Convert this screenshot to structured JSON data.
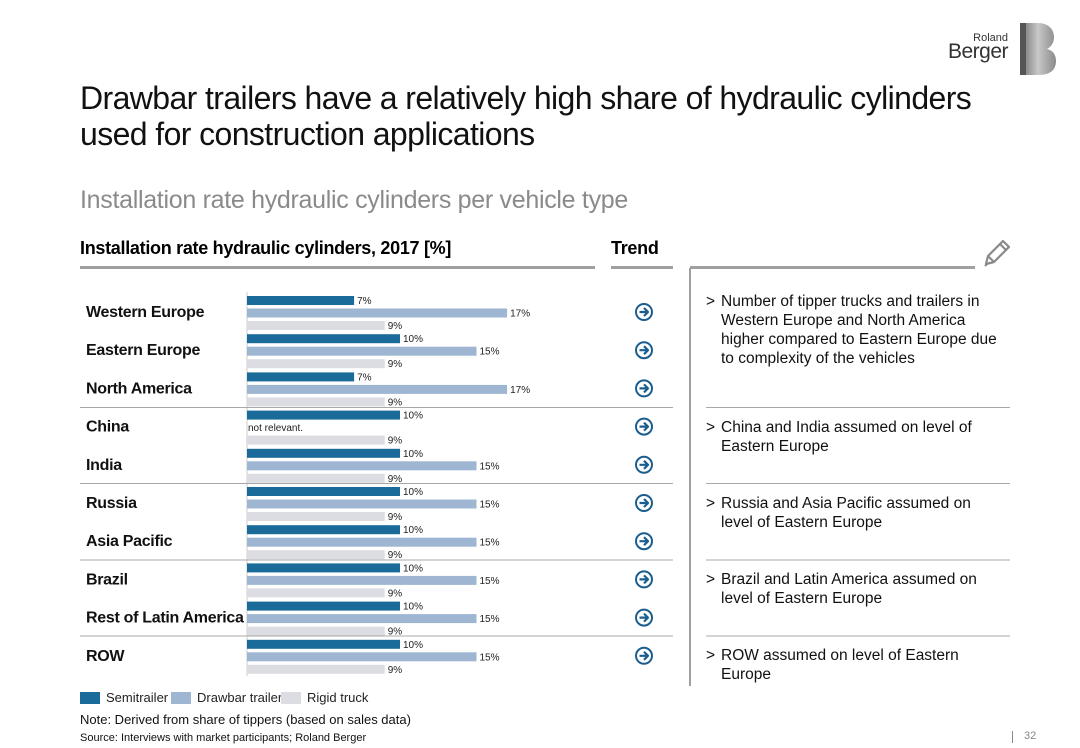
{
  "logo": {
    "line1": "Roland",
    "line2": "Berger"
  },
  "title": "Drawbar trailers have a relatively high share of hydraulic cylinders used for construction applications",
  "subtitle": "Installation rate hydraulic cylinders per vehicle type",
  "chart_heading": "Installation rate hydraulic cylinders, 2017 [%]",
  "trend_heading": "Trend",
  "colors": {
    "semitrailer": "#1a6a9a",
    "drawbar": "#9fb6d2",
    "rigid": "#dcdde2",
    "trend_icon": "#1a5d8f",
    "divider": "#a8a8a8"
  },
  "icons": {
    "trend": "arrow-right-circle-icon",
    "edit": "pencil-icon"
  },
  "chart_data": {
    "type": "bar",
    "orientation": "horizontal",
    "categories": [
      "Western Europe",
      "Eastern Europe",
      "North America",
      "China",
      "India",
      "Russia",
      "Asia Pacific",
      "Brazil",
      "Rest of Latin America",
      "ROW"
    ],
    "series": [
      {
        "name": "Semitrailer",
        "values": [
          7,
          10,
          7,
          10,
          10,
          10,
          10,
          10,
          10,
          10
        ]
      },
      {
        "name": "Drawbar trailer",
        "values": [
          17,
          15,
          17,
          null,
          15,
          15,
          15,
          15,
          15,
          15
        ]
      },
      {
        "name": "Rigid truck",
        "values": [
          9,
          9,
          9,
          9,
          9,
          9,
          9,
          9,
          9,
          9
        ]
      }
    ],
    "data_labels": [
      [
        "7%",
        "17%",
        "9%"
      ],
      [
        "10%",
        "15%",
        "9%"
      ],
      [
        "7%",
        "17%",
        "9%"
      ],
      [
        "10%",
        "not relevant.",
        "9%"
      ],
      [
        "10%",
        "15%",
        "9%"
      ],
      [
        "10%",
        "15%",
        "9%"
      ],
      [
        "10%",
        "15%",
        "9%"
      ],
      [
        "10%",
        "15%",
        "9%"
      ],
      [
        "10%",
        "15%",
        "9%"
      ],
      [
        "10%",
        "15%",
        "9%"
      ]
    ],
    "xlim": [
      0,
      20
    ],
    "groups": [
      [
        0,
        1,
        2
      ],
      [
        3,
        4
      ],
      [
        5,
        6
      ],
      [
        7,
        8
      ],
      [
        9
      ]
    ],
    "trend": [
      "stable",
      "stable",
      "stable",
      "stable",
      "stable",
      "stable",
      "stable",
      "stable",
      "stable",
      "stable"
    ],
    "legend_position": "bottom-left",
    "grid": false
  },
  "comments": [
    "Number of tipper trucks and trailers in Western Europe and North America higher compared to Eastern Europe due to complexity of the vehicles",
    "China and India assumed on level of Eastern Europe",
    "Russia and Asia Pacific assumed on level of Eastern Europe",
    "Brazil and Latin America assumed on level of Eastern Europe",
    "ROW assumed on level of Eastern Europe"
  ],
  "bullet": ">",
  "note": "Note: Derived from share of tippers (based on sales data)",
  "source": "Source: Interviews with market participants; Roland Berger",
  "page_number": "32"
}
